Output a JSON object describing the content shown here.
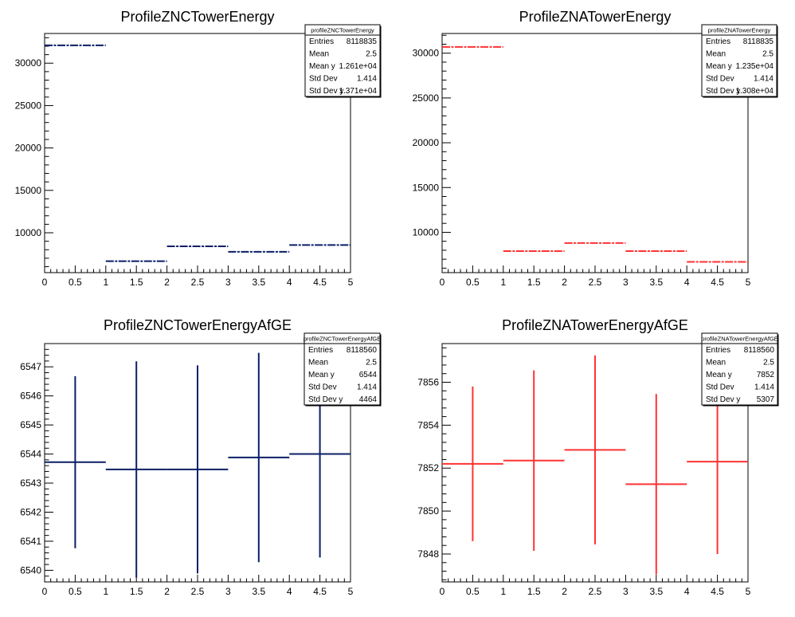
{
  "chart_data": [
    {
      "type": "profile",
      "title": "ProfileZNCTowerEnergy",
      "color": "#0b1f66",
      "dashed": true,
      "x": [
        0.5,
        1.5,
        2.5,
        3.5,
        4.5
      ],
      "xbin_width": 1,
      "values": [
        32100,
        6650,
        8400,
        7750,
        8550
      ],
      "errors": [
        0,
        0,
        0,
        0,
        0
      ],
      "xlim": [
        0,
        5
      ],
      "ylim": [
        5300,
        33500
      ],
      "xticks": [
        "0",
        "0.5",
        "1",
        "1.5",
        "2",
        "2.5",
        "3",
        "3.5",
        "4",
        "4.5",
        "5"
      ],
      "yticks": [
        10000,
        15000,
        20000,
        25000,
        30000
      ],
      "ytick_labels": [
        "10000",
        "15000",
        "20000",
        "25000",
        "30000"
      ],
      "stats": {
        "name": "profileZNCTowerEnergy",
        "rows": [
          {
            "label": "Entries",
            "value": "8118835"
          },
          {
            "label": "Mean",
            "value": "2.5"
          },
          {
            "label": "Mean y",
            "value": "1.261e+04"
          },
          {
            "label": "Std Dev",
            "value": "1.414"
          },
          {
            "label": "Std Dev y",
            "value": "1.371e+04"
          }
        ]
      }
    },
    {
      "type": "profile",
      "title": "ProfileZNATowerEnergy",
      "color": "#ff3333",
      "dashed": true,
      "x": [
        0.5,
        1.5,
        2.5,
        3.5,
        4.5
      ],
      "xbin_width": 1,
      "values": [
        30700,
        7900,
        8800,
        7900,
        6700
      ],
      "errors": [
        0,
        0,
        0,
        0,
        0
      ],
      "xlim": [
        0,
        5
      ],
      "ylim": [
        5500,
        32200
      ],
      "xticks": [
        "0",
        "0.5",
        "1",
        "1.5",
        "2",
        "2.5",
        "3",
        "3.5",
        "4",
        "4.5",
        "5"
      ],
      "yticks": [
        10000,
        15000,
        20000,
        25000,
        30000
      ],
      "ytick_labels": [
        "10000",
        "15000",
        "20000",
        "25000",
        "30000"
      ],
      "stats": {
        "name": "profileZNATowerEnergy",
        "rows": [
          {
            "label": "Entries",
            "value": "8118835"
          },
          {
            "label": "Mean",
            "value": "2.5"
          },
          {
            "label": "Mean y",
            "value": "1.235e+04"
          },
          {
            "label": "Std Dev",
            "value": "1.414"
          },
          {
            "label": "Std Dev y",
            "value": "1.308e+04"
          }
        ]
      }
    },
    {
      "type": "profile",
      "title": "ProfileZNCTowerEnergyAfGE",
      "color": "#0b1f66",
      "dashed": false,
      "x": [
        0.5,
        1.5,
        2.5,
        3.5,
        4.5
      ],
      "xbin_width": 1,
      "values": [
        6543.72,
        6543.47,
        6543.47,
        6543.88,
        6544.0
      ],
      "errors": [
        2.96,
        3.72,
        3.58,
        3.6,
        3.56
      ],
      "xlim": [
        0,
        5
      ],
      "ylim": [
        6539.6,
        6547.8
      ],
      "xticks": [
        "0",
        "0.5",
        "1",
        "1.5",
        "2",
        "2.5",
        "3",
        "3.5",
        "4",
        "4.5",
        "5"
      ],
      "yticks": [
        6540,
        6541,
        6542,
        6543,
        6544,
        6545,
        6546,
        6547
      ],
      "ytick_labels": [
        "6540",
        "6541",
        "6542",
        "6543",
        "6544",
        "6545",
        "6546",
        "6547"
      ],
      "stats": {
        "name": "profileZNCTowerEnergyAfGE",
        "rows": [
          {
            "label": "Entries",
            "value": "8118560"
          },
          {
            "label": "Mean",
            "value": "2.5"
          },
          {
            "label": "Mean y",
            "value": "6544"
          },
          {
            "label": "Std Dev",
            "value": "1.414"
          },
          {
            "label": "Std Dev y",
            "value": "4464"
          }
        ]
      }
    },
    {
      "type": "profile",
      "title": "ProfileZNATowerEnergyAfGE",
      "color": "#ff3333",
      "dashed": false,
      "x": [
        0.5,
        1.5,
        2.5,
        3.5,
        4.5
      ],
      "xbin_width": 1,
      "values": [
        7852.2,
        7852.35,
        7852.85,
        7851.25,
        7852.3
      ],
      "errors": [
        3.6,
        4.2,
        4.4,
        4.2,
        4.3
      ],
      "xlim": [
        0,
        5
      ],
      "ylim": [
        7846.7,
        7857.8
      ],
      "xticks": [
        "0",
        "0.5",
        "1",
        "1.5",
        "2",
        "2.5",
        "3",
        "3.5",
        "4",
        "4.5",
        "5"
      ],
      "yticks": [
        7848,
        7850,
        7852,
        7854,
        7856
      ],
      "ytick_labels": [
        "7848",
        "7850",
        "7852",
        "7854",
        "7856"
      ],
      "stats": {
        "name": "profileZNATowerEnergyAfGE",
        "rows": [
          {
            "label": "Entries",
            "value": "8118560"
          },
          {
            "label": "Mean",
            "value": "2.5"
          },
          {
            "label": "Mean y",
            "value": "7852"
          },
          {
            "label": "Std Dev",
            "value": "1.414"
          },
          {
            "label": "Std Dev y",
            "value": "5307"
          }
        ]
      }
    }
  ]
}
